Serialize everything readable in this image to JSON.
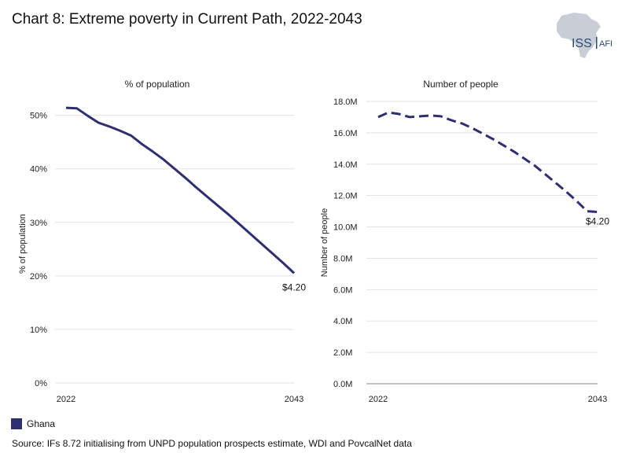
{
  "title": "Chart 8: Extreme poverty in Current Path, 2022-2043",
  "logo": {
    "text_main": "ISS",
    "text_sub": "AFI"
  },
  "legend": [
    {
      "label": "Ghana",
      "color": "#2E2F6F"
    }
  ],
  "source": "Source: IFs 8.72 initialising from UNPD population prospects estimate, WDI and PovcalNet data",
  "chart_data": [
    {
      "type": "line",
      "panel_title": "% of population",
      "ylabel": "% of population",
      "xlabel": "",
      "x_ticks": [
        "2022",
        "2043"
      ],
      "y_ticks": [
        "0%",
        "10%",
        "20%",
        "30%",
        "40%",
        "50%"
      ],
      "xlim": [
        2022,
        2043
      ],
      "ylim": [
        0,
        52
      ],
      "grid": true,
      "series": [
        {
          "name": "Ghana",
          "color": "#2E2F6F",
          "style": "solid",
          "end_label": "$4.20",
          "x": [
            2022,
            2023,
            2024,
            2025,
            2026,
            2027,
            2028,
            2029,
            2030,
            2031,
            2032,
            2033,
            2034,
            2035,
            2036,
            2037,
            2038,
            2039,
            2040,
            2041,
            2042,
            2043
          ],
          "y": [
            51.4,
            51.3,
            49.9,
            48.6,
            47.9,
            47.1,
            46.2,
            44.6,
            43.2,
            41.7,
            40.0,
            38.3,
            36.5,
            34.8,
            33.1,
            31.4,
            29.6,
            27.8,
            26.0,
            24.2,
            22.4,
            20.5
          ]
        }
      ]
    },
    {
      "type": "line",
      "panel_title": "Number of people",
      "ylabel": "Number of people",
      "xlabel": "",
      "x_ticks": [
        "2022",
        "2043"
      ],
      "y_ticks": [
        "0.0M",
        "2.0M",
        "4.0M",
        "6.0M",
        "8.0M",
        "10.0M",
        "12.0M",
        "14.0M",
        "16.0M",
        "18.0M"
      ],
      "xlim": [
        2022,
        2043
      ],
      "ylim": [
        0,
        18
      ],
      "grid": true,
      "series": [
        {
          "name": "Ghana",
          "color": "#2E2F6F",
          "style": "dashed",
          "end_label": "$4.20",
          "x": [
            2022,
            2023,
            2024,
            2025,
            2026,
            2027,
            2028,
            2029,
            2030,
            2031,
            2032,
            2033,
            2034,
            2035,
            2036,
            2037,
            2038,
            2039,
            2040,
            2041,
            2042,
            2043
          ],
          "y": [
            17.0,
            17.3,
            17.2,
            17.0,
            17.05,
            17.1,
            17.05,
            16.8,
            16.6,
            16.3,
            15.95,
            15.6,
            15.2,
            14.8,
            14.35,
            13.9,
            13.35,
            12.8,
            12.25,
            11.65,
            11.0,
            10.95
          ]
        }
      ]
    }
  ]
}
